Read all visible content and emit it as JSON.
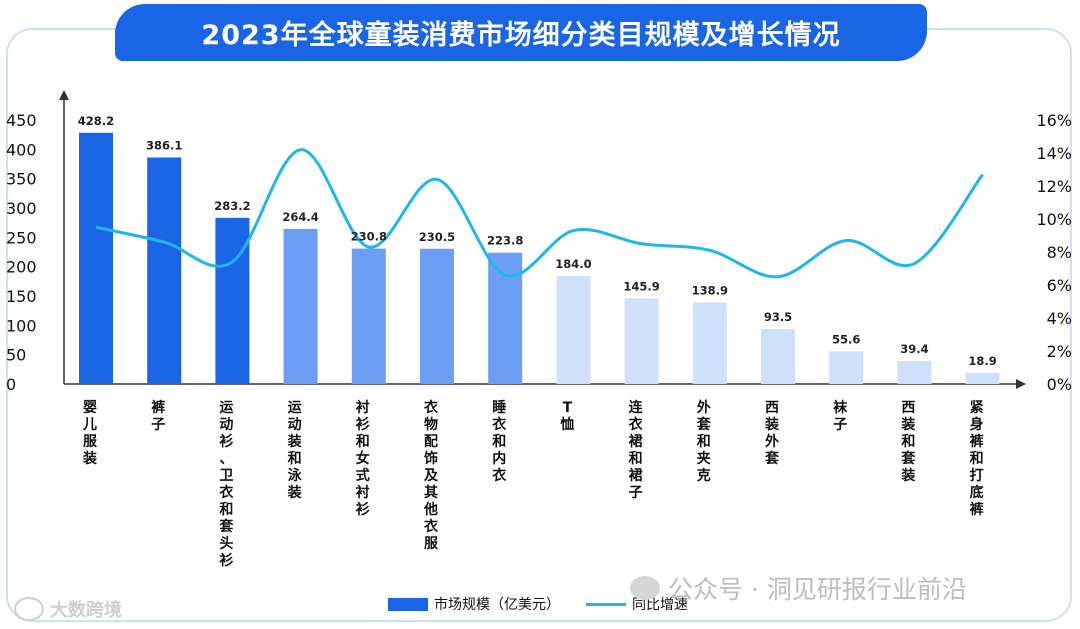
{
  "title": "2023年全球童装消费市场细分类目规模及增长情况",
  "chart_data": {
    "type": "bar+line",
    "categories": [
      "婴儿服装",
      "裤子",
      "运动衫、卫衣和套头衫",
      "运动装和泳装",
      "衬衫和女式衬衫",
      "衣物配饰及其他衣服",
      "睡衣和内衣",
      "T恤",
      "连衣裙和裙子",
      "外套和夹克",
      "西装外套",
      "袜子",
      "西装和套装",
      "紧身裤和打底裤"
    ],
    "series": [
      {
        "name": "市场规模（亿美元）",
        "type": "bar",
        "axis": "left",
        "values": [
          428.2,
          386.1,
          283.2,
          264.4,
          230.8,
          230.5,
          223.8,
          184.0,
          145.9,
          138.9,
          93.5,
          55.6,
          39.4,
          18.9
        ],
        "value_labels": [
          "428.2",
          "386.1",
          "283.2",
          "264.4",
          "230.8",
          "230.5",
          "223.8",
          "184.0",
          "145.9",
          "138.9",
          "93.5",
          "55.6",
          "39.4",
          "18.9"
        ]
      },
      {
        "name": "同比增速",
        "type": "line",
        "axis": "right",
        "smooth": true,
        "values": [
          9.5,
          8.6,
          7.4,
          14.2,
          8.3,
          12.4,
          6.6,
          9.3,
          8.5,
          8.1,
          6.5,
          8.7,
          7.3,
          12.7
        ]
      }
    ],
    "y_left": {
      "min": 0,
      "max": 450,
      "ticks": [
        "0",
        "50",
        "100",
        "150",
        "200",
        "250",
        "300",
        "350",
        "400",
        "450"
      ]
    },
    "y_right": {
      "min": 0,
      "max": 16,
      "ticks": [
        "0%",
        "2%",
        "4%",
        "6%",
        "8%",
        "10%",
        "12%",
        "14%",
        "16%"
      ]
    },
    "bar_colors": [
      "#1a64e6",
      "#1a64e6",
      "#1a64e6",
      "#6b9ff5",
      "#6b9ff5",
      "#6b9ff5",
      "#6b9ff5",
      "#cfe0fb",
      "#cfe0fb",
      "#cfe0fb",
      "#cfe0fb",
      "#cfe0fb",
      "#cfe0fb",
      "#cfe0fb"
    ],
    "line_color": "#1fb6ea",
    "legend_position": "bottom"
  },
  "legend": {
    "bar_label": "市场规模（亿美元）",
    "line_label": "同比增速"
  },
  "watermarks": {
    "right": "公众号 · 洞见研报行业前沿",
    "left": "大数跨境"
  }
}
